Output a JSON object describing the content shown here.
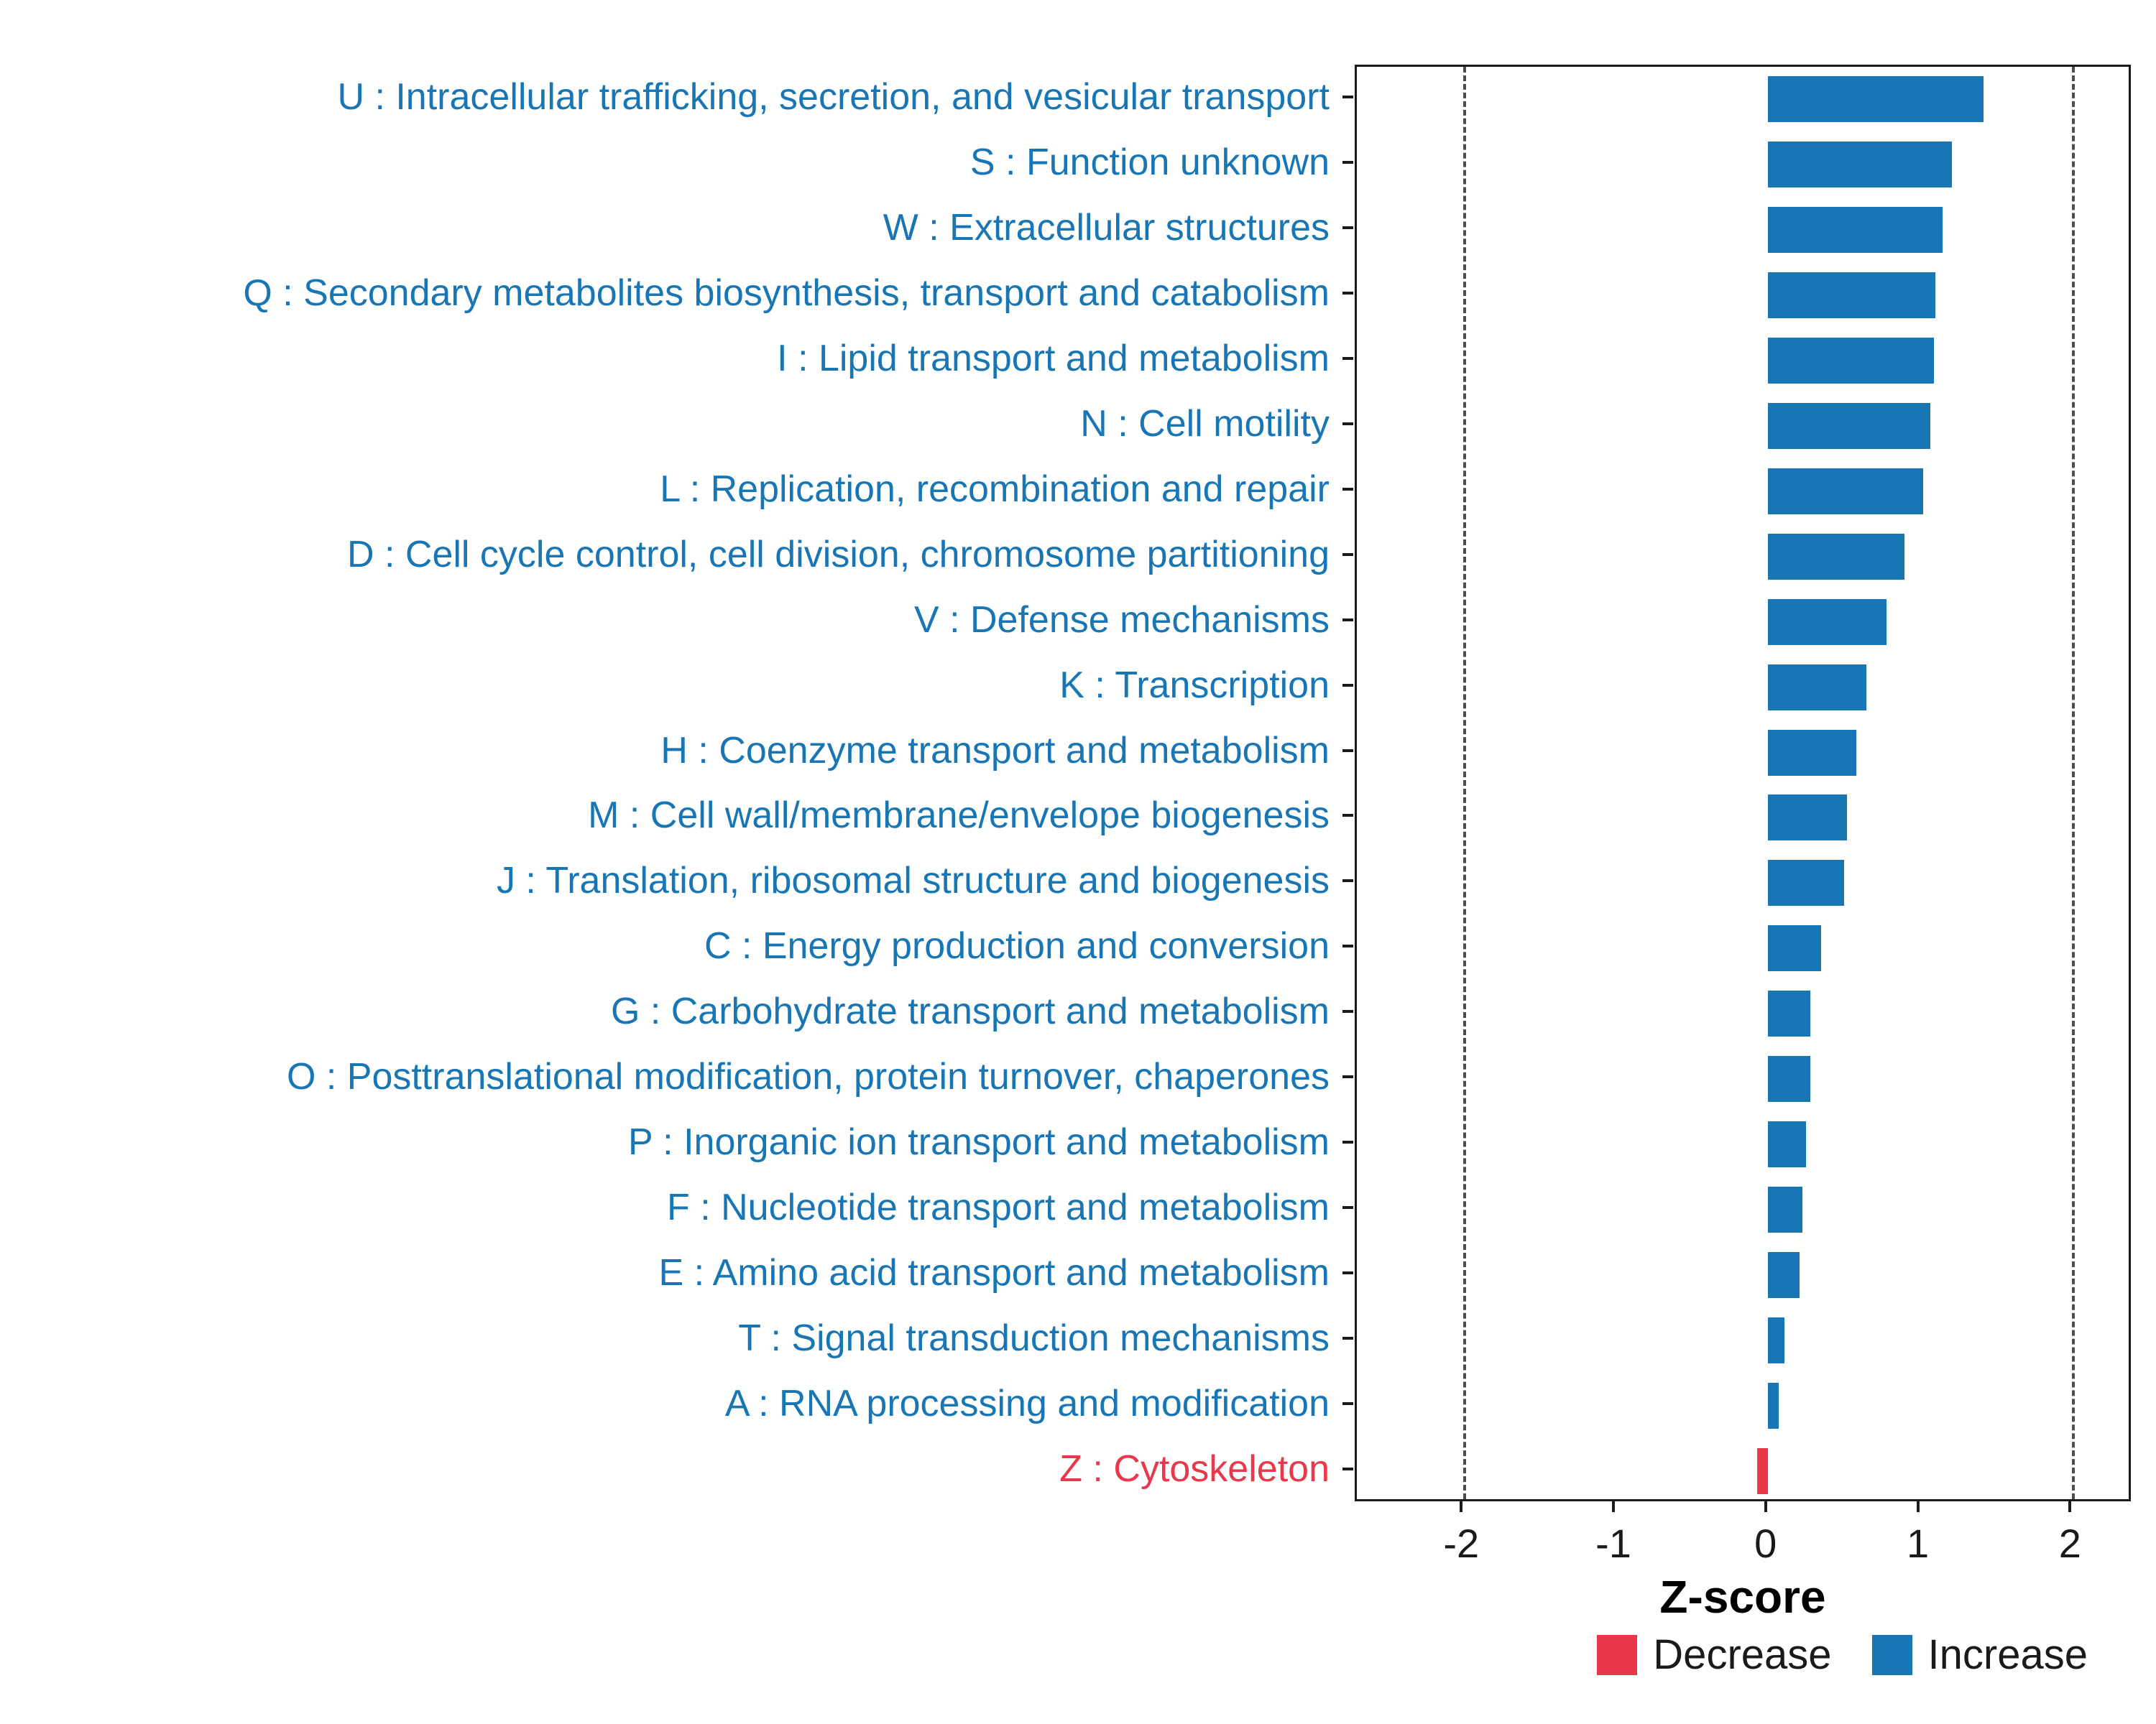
{
  "colors": {
    "increase": "#1876B5",
    "decrease": "#E8384A",
    "axis": "#1a1a1a",
    "dashed_line": "#4d4d4d",
    "background": "#ffffff"
  },
  "chart_data": {
    "type": "bar",
    "orientation": "horizontal",
    "title": "",
    "xlabel": "Z-score",
    "ylabel": "",
    "xlim": [
      -2.7,
      2.4
    ],
    "x_ticks": [
      "-2",
      "-1",
      "0",
      "1",
      "2"
    ],
    "x_tick_values": [
      -2,
      -1,
      0,
      1,
      2
    ],
    "dashed_guidelines": [
      -2,
      2
    ],
    "grid": "off",
    "legend_position": "bottom-right",
    "categories": [
      "U : Intracellular trafficking, secretion, and vesicular transport",
      "S : Function unknown",
      "W : Extracellular structures",
      "Q : Secondary metabolites biosynthesis, transport and catabolism",
      "I : Lipid transport and metabolism",
      "N : Cell motility",
      "L : Replication, recombination and repair",
      "D : Cell cycle control, cell division, chromosome partitioning",
      "V : Defense mechanisms",
      "K : Transcription",
      "H : Coenzyme transport and metabolism",
      "M : Cell wall/membrane/envelope biogenesis",
      "J : Translation, ribosomal structure and biogenesis",
      "C : Energy production and conversion",
      "G : Carbohydrate transport and metabolism",
      "O : Posttranslational modification, protein turnover, chaperones",
      "P : Inorganic ion transport and metabolism",
      "F : Nucleotide transport and metabolism",
      "E : Amino acid transport and metabolism",
      "T : Signal transduction mechanisms",
      "A : RNA processing and modification",
      "Z : Cytoskeleton"
    ],
    "values": [
      1.42,
      1.21,
      1.15,
      1.1,
      1.09,
      1.07,
      1.02,
      0.9,
      0.78,
      0.65,
      0.58,
      0.52,
      0.5,
      0.35,
      0.28,
      0.28,
      0.25,
      0.23,
      0.21,
      0.11,
      0.07,
      -0.07
    ],
    "groups": [
      "Increase",
      "Increase",
      "Increase",
      "Increase",
      "Increase",
      "Increase",
      "Increase",
      "Increase",
      "Increase",
      "Increase",
      "Increase",
      "Increase",
      "Increase",
      "Increase",
      "Increase",
      "Increase",
      "Increase",
      "Increase",
      "Increase",
      "Increase",
      "Increase",
      "Decrease"
    ],
    "legend": [
      {
        "label": "Decrease",
        "color": "#E8384A"
      },
      {
        "label": "Increase",
        "color": "#1876B5"
      }
    ]
  }
}
